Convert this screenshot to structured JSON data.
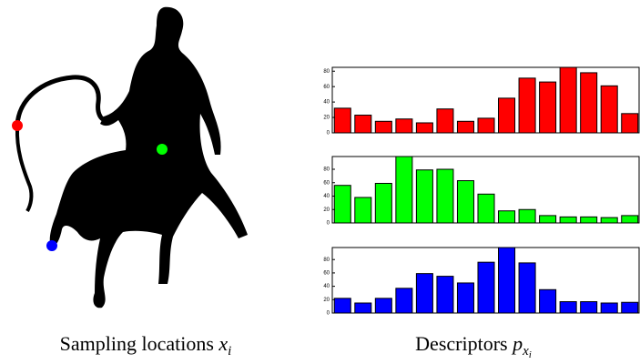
{
  "captions": [
    {
      "text": "Sampling locations",
      "var": "x",
      "sub": "i"
    },
    {
      "text": "Descriptors",
      "var": "p",
      "sub": "x",
      "subsub": "i"
    }
  ],
  "chart_data": [
    {
      "type": "bar",
      "color": "#ff0000",
      "values": [
        32,
        23,
        15,
        18,
        13,
        31,
        15,
        19,
        45,
        71,
        66,
        85,
        78,
        61,
        25
      ],
      "ylim": [
        0,
        85
      ],
      "yticks": [
        0,
        20,
        40,
        60,
        80
      ]
    },
    {
      "type": "bar",
      "color": "#00ff00",
      "values": [
        56,
        38,
        59,
        99,
        79,
        80,
        63,
        43,
        18,
        20,
        11,
        9,
        9,
        8,
        11
      ],
      "ylim": [
        0,
        99
      ],
      "yticks": [
        0,
        20,
        40,
        60,
        80
      ]
    },
    {
      "type": "bar",
      "color": "#0000ff",
      "values": [
        22,
        15,
        22,
        37,
        59,
        55,
        45,
        76,
        98,
        75,
        35,
        17,
        17,
        15,
        16
      ],
      "ylim": [
        0,
        98
      ],
      "yticks": [
        0,
        20,
        40,
        60,
        80
      ]
    }
  ]
}
